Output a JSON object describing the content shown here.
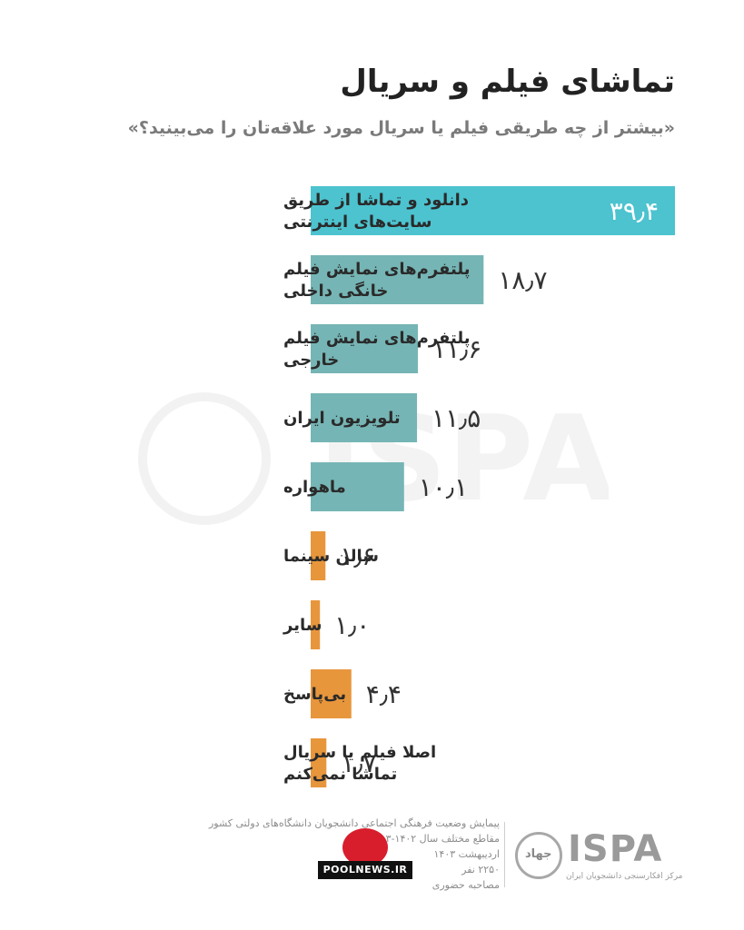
{
  "title": "تماشای فیلم و سریال",
  "subtitle": "«بیشتر از چه طریقی فیلم یا سریال مورد علاقه‌تان را می‌بینید؟»",
  "colors": {
    "teal_highlight": "#4cc3cf",
    "teal": "#76b5b5",
    "orange": "#e8963c"
  },
  "chart_data": {
    "type": "bar",
    "orientation": "horizontal",
    "categories": [
      [
        "دانلود و تماشا از طریق",
        "سایت‌های اینترنتی"
      ],
      [
        "پلتفرم‌های نمایش فیلم",
        "خانگی داخلی"
      ],
      [
        "پلتفرم‌های نمایش فیلم",
        "خارجی"
      ],
      [
        "تلویزیون ایران"
      ],
      [
        "ماهواره"
      ],
      [
        "سالن سینما"
      ],
      [
        "سایر"
      ],
      [
        "بی‌پاسخ"
      ],
      [
        "اصلا فیلم یا سریال",
        "تماشا نمی‌کنم"
      ]
    ],
    "values": [
      39.4,
      18.7,
      11.6,
      11.5,
      10.1,
      1.6,
      1.0,
      4.4,
      1.7
    ],
    "value_labels": [
      "۳۹٫۴",
      "۱۸٫۷",
      "۱۱٫۶",
      "۱۱٫۵",
      "۱۰٫۱",
      "۱٫۶",
      "۱٫۰",
      "۴٫۴",
      "۱٫۷"
    ],
    "bar_colors": [
      "#4cc3cf",
      "#76b5b5",
      "#76b5b5",
      "#76b5b5",
      "#76b5b5",
      "#e8963c",
      "#e8963c",
      "#e8963c",
      "#e8963c"
    ],
    "xlim": [
      0,
      39.4
    ],
    "grid": false,
    "xlabel": "",
    "ylabel": ""
  },
  "footer": {
    "lines": [
      "پیمایش وضعیت فرهنگی اجتماعی دانشجویان دانشگاه‌های دولتی کشور",
      "مقاطع مختلف سال ۱۴۰۲-۱۴۰۳",
      "اردیبهشت ۱۴۰۳",
      "۲۲۵۰ نفر",
      "مصاحبه حضوری"
    ],
    "logo_text": "ISPA",
    "logo_subtext": "مرکز افکارسنجی دانشجویان ایران",
    "seal_text": "جهاد",
    "source_badge": "POOLNEWS.IR"
  }
}
